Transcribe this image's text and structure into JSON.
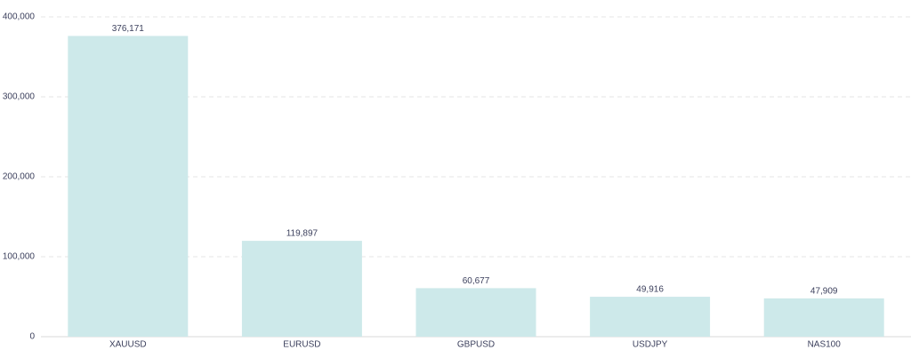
{
  "chart_data": {
    "type": "bar",
    "categories": [
      "XAUUSD",
      "EURUSD",
      "GBPUSD",
      "USDJPY",
      "NAS100"
    ],
    "values": [
      376171,
      119897,
      60677,
      49916,
      47909
    ],
    "value_labels": [
      "376,171",
      "119,897",
      "60,677",
      "49,916",
      "47,909"
    ],
    "color": "#cde9ea",
    "ylim": [
      0,
      400000
    ],
    "yticks": [
      0,
      {
        "value": 100000,
        "label": "100,000"
      },
      {
        "value": 200000,
        "label": "200,000"
      },
      {
        "value": 300000,
        "label": "300,000"
      },
      {
        "value": 400000,
        "label": "400,000"
      }
    ],
    "grid": true
  }
}
